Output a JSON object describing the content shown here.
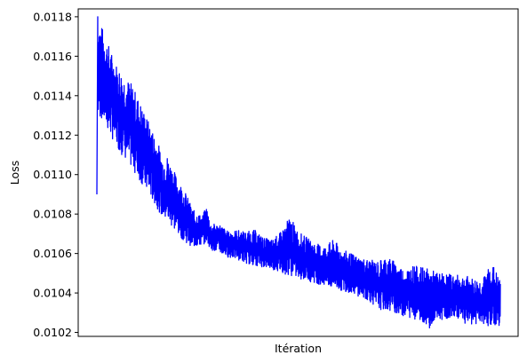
{
  "chart_data": {
    "type": "line",
    "title": "",
    "xlabel": "Itération",
    "ylabel": "Loss",
    "x_ticks_shown": false,
    "ylim": [
      0.01018,
      0.01184
    ],
    "y_ticks": [
      "0.0102",
      "0.0104",
      "0.0106",
      "0.0108",
      "0.0110",
      "0.0112",
      "0.0114",
      "0.0116",
      "0.0118"
    ],
    "grid": false,
    "legend": "none",
    "series": [
      {
        "color": "#0000ff",
        "style": "noisy oscillating band",
        "x": [
          0,
          1,
          2,
          5,
          10,
          20,
          30,
          40,
          50,
          60,
          70,
          75,
          80,
          90,
          100,
          110,
          120,
          125,
          130,
          140,
          150,
          160,
          170,
          180,
          190,
          200,
          210,
          220,
          230,
          240,
          250,
          260,
          270,
          280,
          290,
          300,
          310,
          320,
          330,
          340,
          350,
          360,
          370,
          380,
          390,
          400,
          410,
          420,
          430,
          440,
          450,
          460
        ],
        "upper": [
          0.0109,
          0.0118,
          0.0118,
          0.01176,
          0.0117,
          0.01158,
          0.01151,
          0.01146,
          0.01136,
          0.01126,
          0.01116,
          0.01109,
          0.0111,
          0.011,
          0.01092,
          0.01082,
          0.01079,
          0.01084,
          0.01075,
          0.01075,
          0.01071,
          0.01072,
          0.01071,
          0.01072,
          0.01068,
          0.01067,
          0.01071,
          0.01079,
          0.01071,
          0.01068,
          0.01065,
          0.01064,
          0.01067,
          0.01062,
          0.0106,
          0.01058,
          0.01057,
          0.01056,
          0.01059,
          0.01056,
          0.01052,
          0.01054,
          0.01053,
          0.01052,
          0.0105,
          0.0105,
          0.01049,
          0.01049,
          0.01047,
          0.01047,
          0.01056,
          0.01046
        ],
        "lower": [
          0.0109,
          0.01126,
          0.01128,
          0.01128,
          0.01124,
          0.01116,
          0.01109,
          0.01103,
          0.01096,
          0.01089,
          0.01082,
          0.01078,
          0.01076,
          0.01071,
          0.01066,
          0.01063,
          0.01064,
          0.01066,
          0.01062,
          0.0106,
          0.01058,
          0.01057,
          0.01055,
          0.01054,
          0.01053,
          0.01052,
          0.0105,
          0.01049,
          0.01047,
          0.01046,
          0.01045,
          0.01043,
          0.01042,
          0.01041,
          0.0104,
          0.01038,
          0.01036,
          0.01032,
          0.01031,
          0.0103,
          0.01028,
          0.01027,
          0.01026,
          0.01022,
          0.01026,
          0.01027,
          0.01028,
          0.01024,
          0.01024,
          0.01024,
          0.01023,
          0.01023
        ]
      }
    ]
  }
}
